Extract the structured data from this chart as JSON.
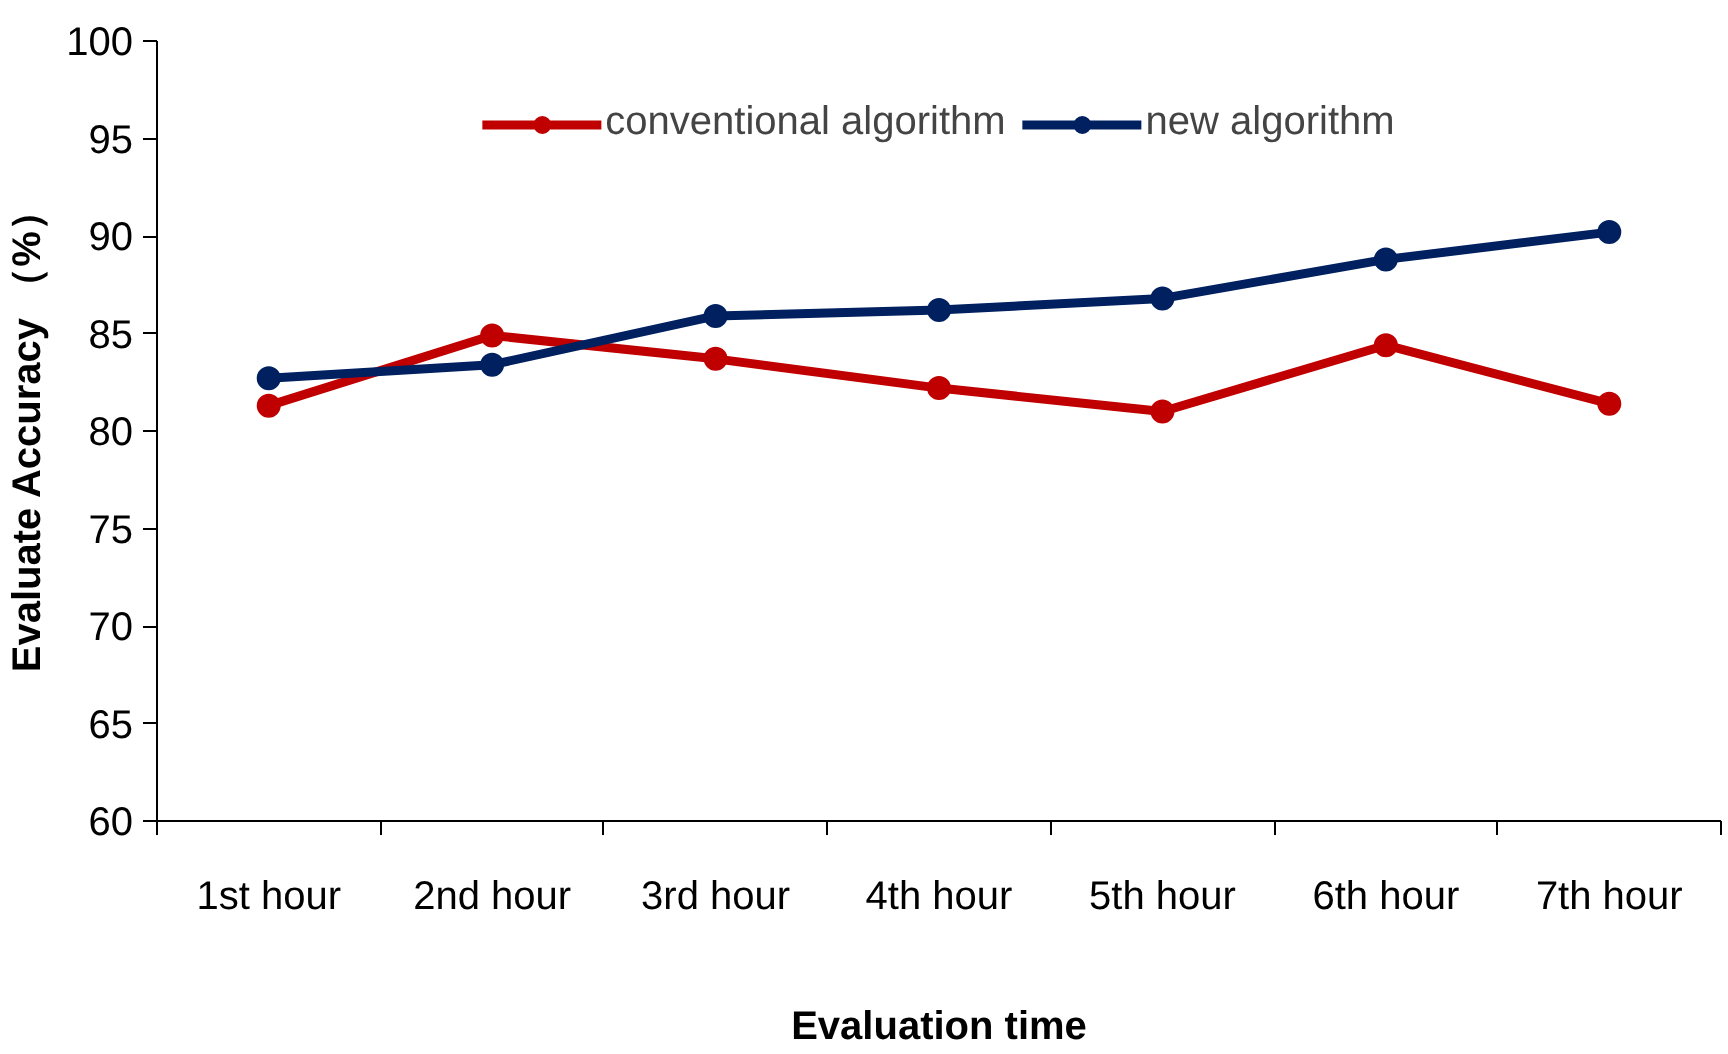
{
  "chart_data": {
    "type": "line",
    "xlabel": "Evaluation time",
    "ylabel": "Evaluate Accuracy （%）",
    "categories": [
      "1st hour",
      "2nd hour",
      "3rd hour",
      "4th hour",
      "5th hour",
      "6th hour",
      "7th hour"
    ],
    "series": [
      {
        "name": "conventional algorithm",
        "color": "#c00000",
        "values": [
          81.3,
          84.9,
          83.7,
          82.2,
          81.0,
          84.4,
          81.4
        ]
      },
      {
        "name": "new algorithm",
        "color": "#002060",
        "values": [
          82.7,
          83.4,
          85.9,
          86.2,
          86.8,
          88.8,
          90.2
        ]
      }
    ],
    "ylim": [
      60,
      100
    ],
    "yticks": [
      60,
      65,
      70,
      75,
      80,
      85,
      90,
      95,
      100
    ],
    "grid": false,
    "legend": "top",
    "marker": "circle",
    "line_style": "solid"
  }
}
